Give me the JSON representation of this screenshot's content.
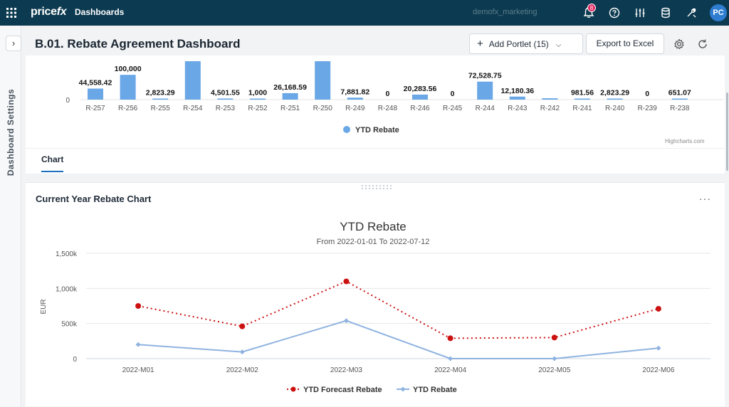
{
  "topbar": {
    "logo_part1": "price",
    "logo_part2": "fx",
    "nav_label": "Dashboards",
    "partition": "demofx_marketing",
    "notification_count": "8",
    "avatar_initials": "PC"
  },
  "sidebar": {
    "vertical_title": "Dashboard Settings",
    "expand_label": "›"
  },
  "header": {
    "title": "B.01. Rebate Agreement Dashboard",
    "add_portlet_label": "Add Portlet (15)",
    "export_label": "Export to Excel"
  },
  "top_chart_credit": "Highcharts.com",
  "tabs": [
    {
      "label": "Chart"
    }
  ],
  "portlet": {
    "title": "Current Year Rebate Chart",
    "more_label": "···"
  },
  "chart_data": [
    {
      "type": "bar",
      "categories": [
        "R-257",
        "R-256",
        "R-255",
        "R-254",
        "R-253",
        "R-252",
        "R-251",
        "R-250",
        "R-249",
        "R-248",
        "R-246",
        "R-245",
        "R-244",
        "R-243",
        "R-242",
        "R-241",
        "R-240",
        "R-239",
        "R-238"
      ],
      "data_labels": [
        "44,558.42",
        "100,000",
        "2,823.29",
        "",
        "4,501.55",
        "1,000",
        "26,168.59",
        "",
        "7,881.82",
        "0",
        "20,283.56",
        "0",
        "72,528.75",
        "12,180.36",
        "",
        "981.56",
        "2,823.29",
        "0",
        "651.07"
      ],
      "values": [
        44558.42,
        100000,
        2823.29,
        155000,
        4501.55,
        1000,
        26168.59,
        155000,
        7881.82,
        0,
        20283.56,
        0,
        72528.75,
        12180.36,
        5500,
        981.56,
        2823.29,
        0,
        651.07
      ],
      "y_tick_labels": [
        "0"
      ],
      "series": [
        {
          "name": "YTD Rebate",
          "color": "#6aa7e6"
        }
      ],
      "legend_position": "bottom"
    },
    {
      "type": "line",
      "title": "YTD Rebate",
      "subtitle": "From 2022-01-01 To 2022-07-12",
      "ylabel": "EUR",
      "ylim": [
        0,
        1500000
      ],
      "y_ticks": [
        0,
        500000,
        1000000,
        1500000
      ],
      "y_tick_labels": [
        "0",
        "500k",
        "1,000k",
        "1,500k"
      ],
      "categories": [
        "2022-M01",
        "2022-M02",
        "2022-M03",
        "2022-M04",
        "2022-M05",
        "2022-M06"
      ],
      "series": [
        {
          "name": "YTD Forecast Rebate",
          "color": "#cc1111",
          "style": "dotted",
          "values": [
            750000,
            460000,
            1100000,
            290000,
            300000,
            710000
          ]
        },
        {
          "name": "YTD Rebate",
          "color": "#8fb3e0",
          "style": "solid",
          "values": [
            200000,
            95000,
            540000,
            0,
            0,
            150000
          ]
        }
      ],
      "legend_position": "bottom"
    }
  ]
}
